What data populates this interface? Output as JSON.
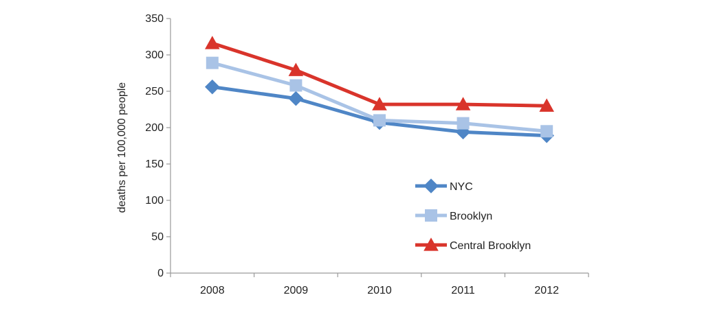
{
  "chart_data": {
    "type": "line",
    "title": "",
    "xlabel": "",
    "ylabel": "deaths per 100,000 people",
    "categories": [
      "2008",
      "2009",
      "2010",
      "2011",
      "2012"
    ],
    "ylim": [
      0,
      350
    ],
    "yticks": [
      0,
      50,
      100,
      150,
      200,
      250,
      300,
      350
    ],
    "grid": false,
    "legend_position": "right",
    "series": [
      {
        "name": "NYC",
        "values": [
          256,
          240,
          207,
          194,
          189
        ],
        "color": "#4f86c6",
        "marker": "diamond"
      },
      {
        "name": "Brooklyn",
        "values": [
          289,
          258,
          210,
          206,
          195
        ],
        "color": "#a9c3e6",
        "marker": "square"
      },
      {
        "name": "Central Brooklyn",
        "values": [
          316,
          279,
          232,
          232,
          230
        ],
        "color": "#d9342b",
        "marker": "triangle"
      }
    ]
  }
}
